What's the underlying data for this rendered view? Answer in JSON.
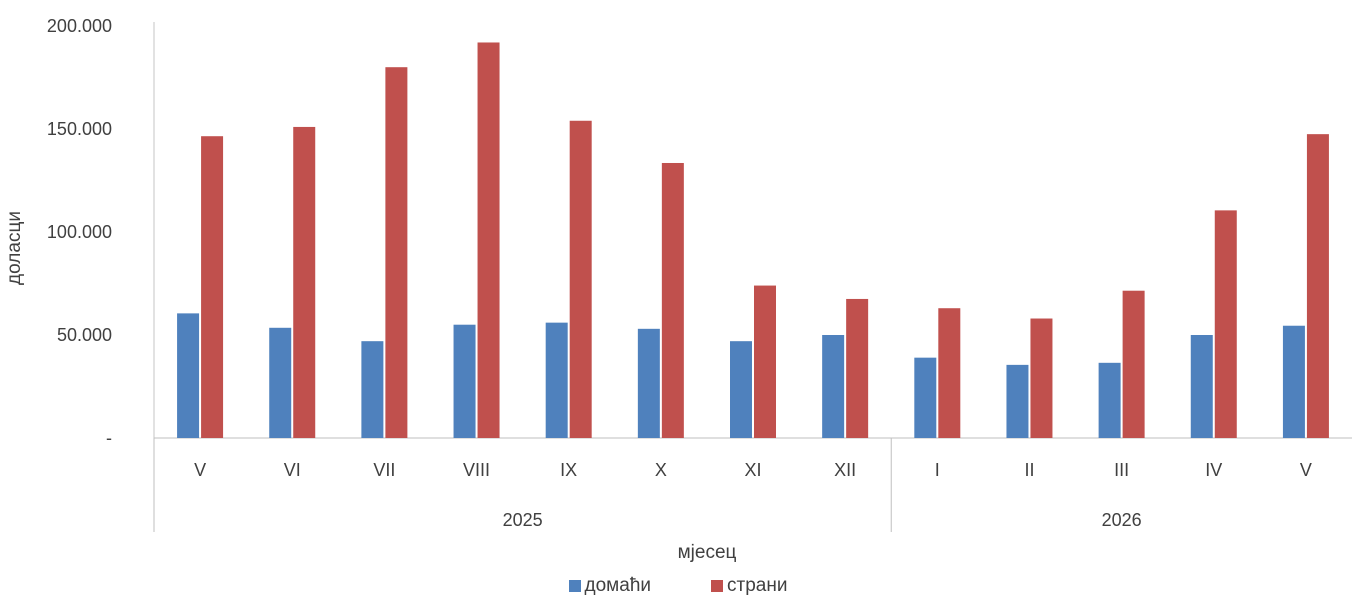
{
  "colors": {
    "domestic": "#4F81BD",
    "foreign": "#C0504D",
    "axis": "#BFBFBF",
    "text": "#404040"
  },
  "chart_data": {
    "type": "bar",
    "ylabel": "доласци",
    "xlabel": "мјесец",
    "ylim": [
      0,
      200000
    ],
    "y_ticks": [
      {
        "value": 0,
        "label": "-"
      },
      {
        "value": 50000,
        "label": "50.000"
      },
      {
        "value": 100000,
        "label": "100.000"
      },
      {
        "value": 150000,
        "label": "150.000"
      },
      {
        "value": 200000,
        "label": "200.000"
      }
    ],
    "categories": [
      "V",
      "VI",
      "VII",
      "VIII",
      "IX",
      "X",
      "XI",
      "XII",
      "I",
      "II",
      "III",
      "IV",
      "V"
    ],
    "groups": [
      {
        "label": "2025",
        "count": 8
      },
      {
        "label": "2026",
        "count": 5
      }
    ],
    "series": [
      {
        "name": "домаћи",
        "values": [
          60500,
          53500,
          47000,
          55000,
          56000,
          53000,
          47000,
          50000,
          39000,
          35500,
          36500,
          50000,
          54500
        ]
      },
      {
        "name": "страни",
        "values": [
          146500,
          151000,
          180000,
          192000,
          154000,
          133500,
          74000,
          67500,
          63000,
          58000,
          71500,
          110500,
          147500
        ]
      }
    ],
    "legend_position": "bottom",
    "grid": false
  }
}
